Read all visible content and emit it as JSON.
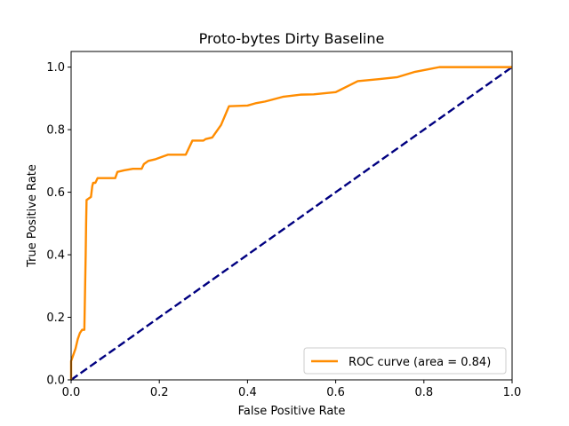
{
  "chart_data": {
    "type": "line",
    "title": "Proto-bytes Dirty Baseline",
    "xlabel": "False Positive Rate",
    "ylabel": "True Positive Rate",
    "xlim": [
      0.0,
      1.0
    ],
    "ylim": [
      0.0,
      1.05
    ],
    "xticks": [
      0.0,
      0.2,
      0.4,
      0.6,
      0.8,
      1.0
    ],
    "yticks": [
      0.0,
      0.2,
      0.4,
      0.6,
      0.8,
      1.0
    ],
    "xtick_labels": [
      "0.0",
      "0.2",
      "0.4",
      "0.6",
      "0.8",
      "1.0"
    ],
    "ytick_labels": [
      "0.0",
      "0.2",
      "0.4",
      "0.6",
      "0.8",
      "1.0"
    ],
    "grid": false,
    "legend_position": "lower-right",
    "series": [
      {
        "name": "ROC curve (area = 0.84)",
        "color": "#ff8c00",
        "style": "solid",
        "x": [
          0.0,
          0.0,
          0.005,
          0.01,
          0.015,
          0.02,
          0.025,
          0.03,
          0.033,
          0.034,
          0.035,
          0.04,
          0.045,
          0.048,
          0.05,
          0.055,
          0.06,
          0.065,
          0.08,
          0.1,
          0.105,
          0.12,
          0.14,
          0.16,
          0.165,
          0.175,
          0.19,
          0.21,
          0.22,
          0.23,
          0.26,
          0.275,
          0.29,
          0.3,
          0.305,
          0.32,
          0.34,
          0.358,
          0.4,
          0.42,
          0.44,
          0.48,
          0.52,
          0.55,
          0.6,
          0.65,
          0.7,
          0.74,
          0.78,
          0.81,
          0.835,
          0.86,
          0.9,
          0.95,
          1.0
        ],
        "y": [
          0.0,
          0.06,
          0.08,
          0.1,
          0.13,
          0.15,
          0.16,
          0.16,
          0.4,
          0.5,
          0.575,
          0.58,
          0.585,
          0.62,
          0.63,
          0.63,
          0.645,
          0.645,
          0.645,
          0.645,
          0.665,
          0.67,
          0.675,
          0.675,
          0.69,
          0.7,
          0.705,
          0.715,
          0.72,
          0.72,
          0.72,
          0.765,
          0.765,
          0.765,
          0.77,
          0.775,
          0.815,
          0.875,
          0.877,
          0.885,
          0.89,
          0.905,
          0.912,
          0.913,
          0.92,
          0.955,
          0.962,
          0.968,
          0.985,
          0.993,
          1.0,
          1.0,
          1.0,
          1.0,
          1.0
        ]
      },
      {
        "name": "",
        "color": "#000080",
        "style": "dashed",
        "x": [
          0.0,
          1.0
        ],
        "y": [
          0.0,
          1.0
        ]
      }
    ]
  }
}
